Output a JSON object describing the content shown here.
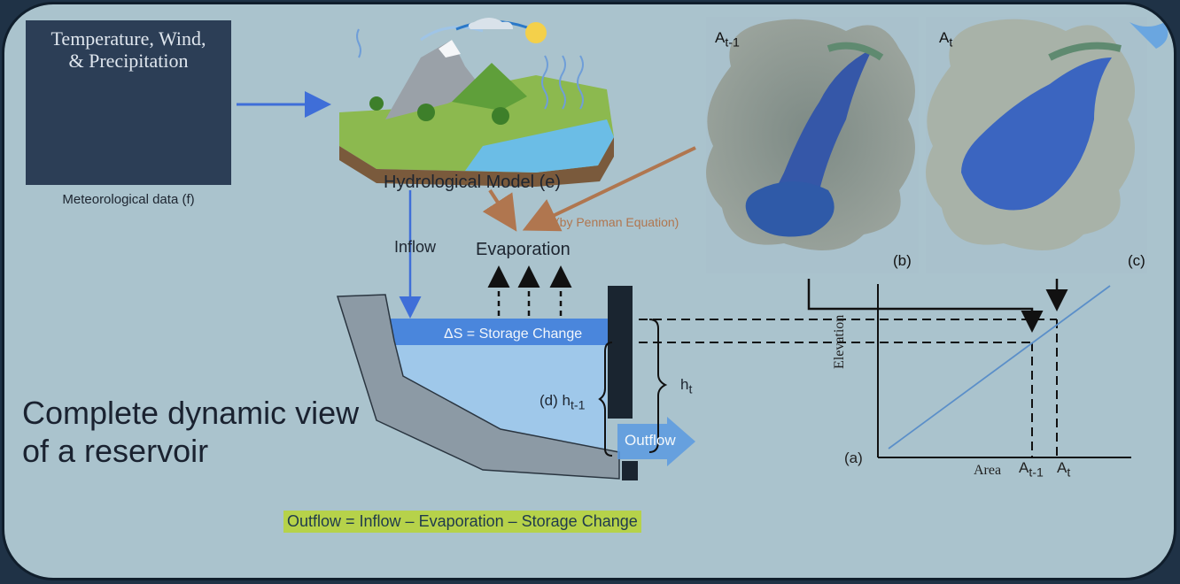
{
  "meteorological": {
    "title_line1": "Temperature, Wind,",
    "title_line2": "& Precipitation",
    "caption": "Meteorological data (f)"
  },
  "hydrological_model": {
    "caption": "Hydrological Model (e)"
  },
  "evaporation": {
    "label": "Evaporation",
    "method": "(by Penman Equation)"
  },
  "inflow": {
    "label": "Inflow"
  },
  "reservoir": {
    "storage_label": "ΔS = Storage Change",
    "d_label": "(d) h",
    "d_sub": "t-1",
    "ht_label": "h",
    "ht_sub": "t",
    "outflow_label": "Outflow"
  },
  "satellite": {
    "left_label": "A",
    "left_sub": "t-1",
    "left_letter": "(b)",
    "right_label": "A",
    "right_sub": "t",
    "right_letter": "(c)"
  },
  "area_elevation_plot": {
    "ylabel": "Elevation",
    "xlabel": "Area",
    "tick_a_prev": "A",
    "tick_a_prev_sub": "t-1",
    "tick_a_curr": "A",
    "tick_a_curr_sub": "t",
    "panel_letter": "(a)"
  },
  "description": "Complete dynamic view of a reservoir",
  "equation": "Outflow = Inflow – Evaporation – Storage Change",
  "colors": {
    "background": "#aac3cd",
    "border": "#101e2c",
    "inflow_arrow": "#3f6ed8",
    "evaporation_arrow": "#b0764f",
    "water": "#4a86dc",
    "dam": "#8c9aa5",
    "equation_highlight": "#b6d24a"
  }
}
